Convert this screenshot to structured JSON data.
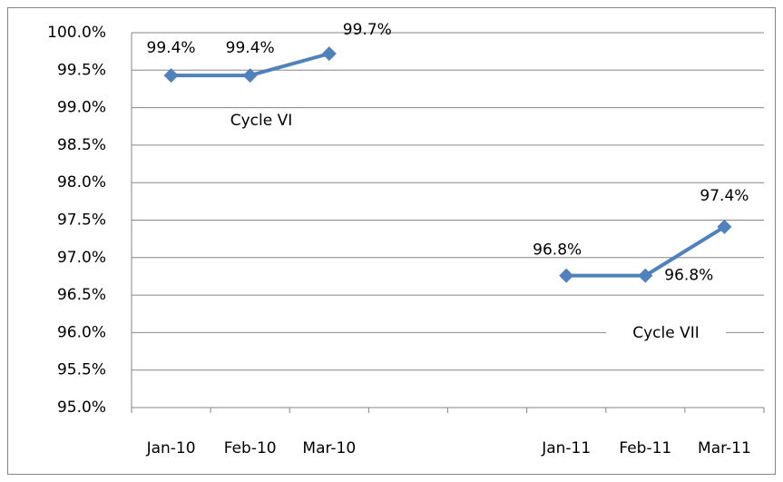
{
  "chart_data": {
    "type": "line",
    "categories": [
      "Jan-10",
      "Feb-10",
      "Mar-10",
      null,
      null,
      "Jan-11",
      "Feb-11",
      "Mar-11"
    ],
    "series": [
      {
        "color": "#4f81bd",
        "values": [
          99.43,
          99.43,
          99.72,
          null,
          null,
          96.76,
          96.76,
          97.41
        ],
        "value_labels": [
          "99.4%",
          "99.4%",
          "99.7%",
          null,
          null,
          "96.8%",
          "96.8%",
          "97.4%"
        ]
      }
    ],
    "ylim": [
      95,
      100
    ],
    "yticks": [
      {
        "value": 95,
        "label": "95.0%"
      },
      {
        "value": 95.5,
        "label": "95.5%"
      },
      {
        "value": 96,
        "label": "96.0%"
      },
      {
        "value": 96.5,
        "label": "96.5%"
      },
      {
        "value": 97,
        "label": "97.0%"
      },
      {
        "value": 97.5,
        "label": "97.5%"
      },
      {
        "value": 98,
        "label": "98.0%"
      },
      {
        "value": 98.5,
        "label": "98.5%"
      },
      {
        "value": 99,
        "label": "99.0%"
      },
      {
        "value": 99.5,
        "label": "99.5%"
      },
      {
        "value": 100,
        "label": "100.0%"
      }
    ],
    "grid": true,
    "annotations": [
      "Cycle VI",
      "Cycle VII"
    ]
  }
}
